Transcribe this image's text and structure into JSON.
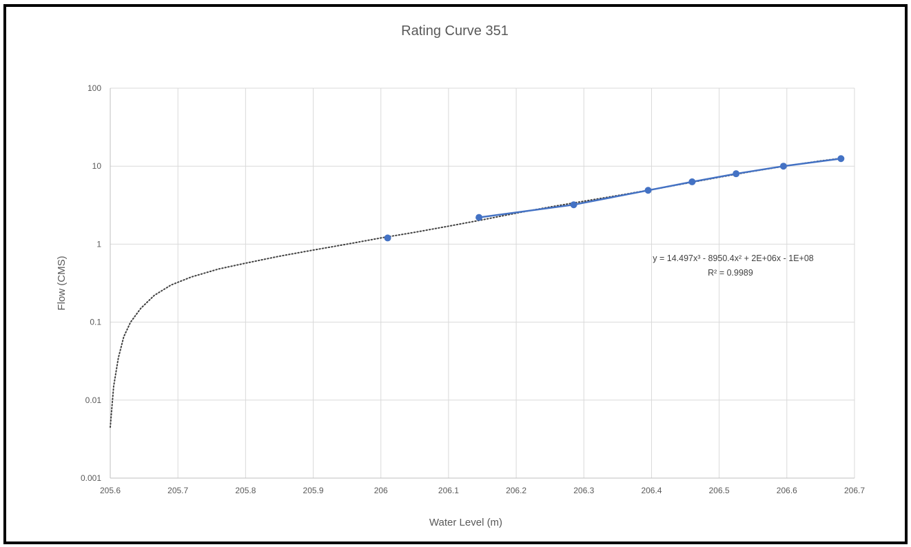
{
  "chart_data": {
    "type": "scatter",
    "title": "Rating Curve 351",
    "xlabel": "Water Level (m)",
    "ylabel": "Flow (CMS)",
    "xlim": [
      205.6,
      206.7
    ],
    "ylim": [
      0.001,
      100
    ],
    "y_scale": "log",
    "x_ticks": [
      "205.6",
      "205.7",
      "205.8",
      "205.9",
      "206",
      "206.1",
      "206.2",
      "206.3",
      "206.4",
      "206.5",
      "206.6",
      "206.7"
    ],
    "y_ticks": [
      "0.001",
      "0.01",
      "0.1",
      "1",
      "10",
      "100"
    ],
    "grid": true,
    "series": [
      {
        "x": [
          206.01,
          206.145,
          206.285,
          206.395,
          206.46,
          206.525,
          206.595,
          206.68
        ],
        "y": [
          1.2,
          2.2,
          3.2,
          4.9,
          6.3,
          8.0,
          10.0,
          12.5
        ],
        "color": "#4472C4"
      }
    ],
    "trendline": {
      "type": "polynomial",
      "order": 3,
      "style": "dotted",
      "color": "#404040",
      "equation": "y = 14.497x³ - 8950.4x² + 2E+06x - 1E+08",
      "r_squared": "R² = 0.9989"
    }
  }
}
